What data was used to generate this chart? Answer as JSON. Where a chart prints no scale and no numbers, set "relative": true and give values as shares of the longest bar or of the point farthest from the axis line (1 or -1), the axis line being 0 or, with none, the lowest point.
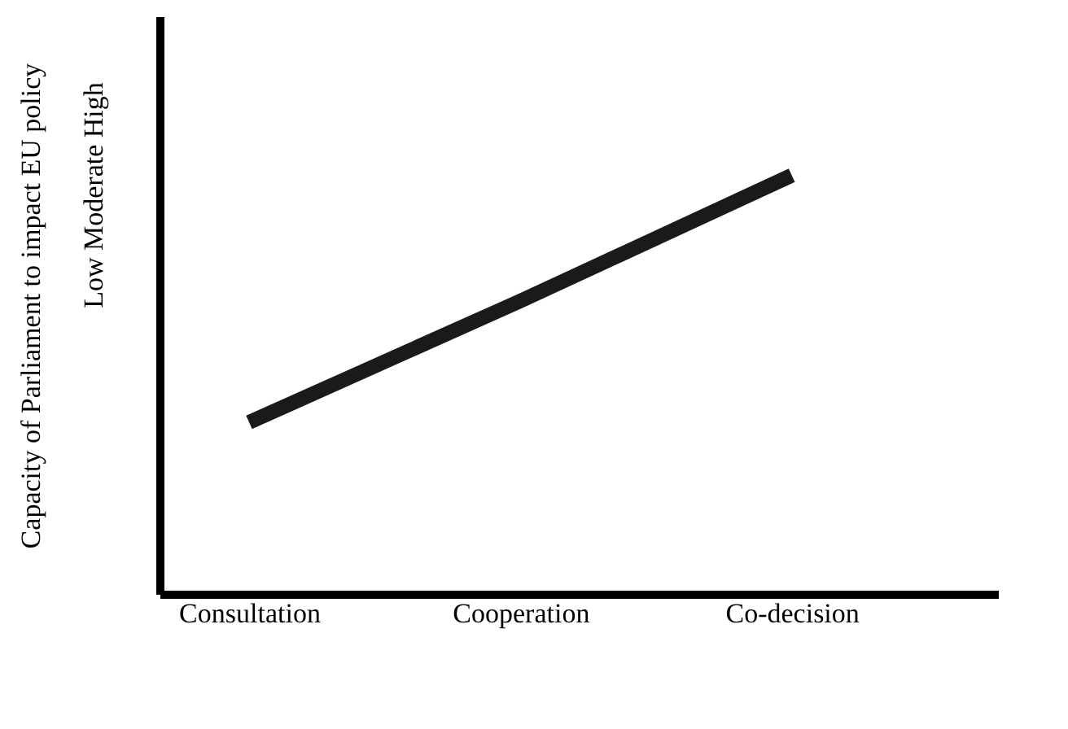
{
  "chart_data": {
    "type": "line",
    "relative": true,
    "ylabel": "Capacity of Parliament to impact EU policy",
    "categories": [
      "Consultation",
      "Cooperation",
      "Co-decision"
    ],
    "series": [
      {
        "color": "#1a1a1a",
        "values": [
          0.41,
          0.7,
          1
        ]
      }
    ],
    "annotations": [
      "Low   Moderate   High"
    ],
    "grid": false,
    "marker": "none",
    "line_style": "solid"
  }
}
